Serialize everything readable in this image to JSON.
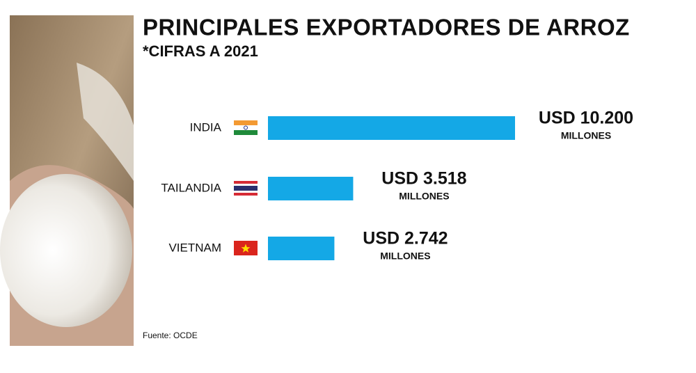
{
  "chart_data": {
    "type": "bar",
    "orientation": "horizontal",
    "title": "PRINCIPALES EXPORTADORES DE ARROZ",
    "subtitle": "*CIFRAS A 2021",
    "categories": [
      "INDIA",
      "TAILANDIA",
      "VIETNAM"
    ],
    "values": [
      10200,
      3518,
      2742
    ],
    "value_labels": [
      "USD 10.200",
      "USD 3.518",
      "USD 2.742"
    ],
    "unit_label": "MILLONES",
    "color": "#14a8e6",
    "source": "Fuente: OCDE"
  }
}
